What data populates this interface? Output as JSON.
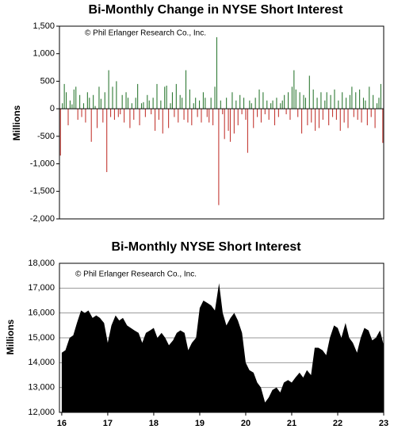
{
  "chart_data": [
    {
      "type": "bar",
      "title": "Bi-Monthly Change in NYSE Short Interest",
      "annotation": "© Phil Erlanger Research Co., Inc.",
      "ylabel": "Millions",
      "ylim": [
        -2000,
        1500
      ],
      "yticks": [
        {
          "value": 1500,
          "label": "1,500"
        },
        {
          "value": 1000,
          "label": "1,000"
        },
        500,
        0,
        -500,
        {
          "value": -1000,
          "label": "-1,000"
        },
        {
          "value": -1500,
          "label": "-1,500"
        },
        {
          "value": -2000,
          "label": "-2,000"
        }
      ],
      "colors": {
        "positive": "#2f7a35",
        "negative": "#c43a34"
      },
      "values": [
        -850,
        100,
        450,
        300,
        -300,
        150,
        80,
        350,
        400,
        -200,
        250,
        -150,
        100,
        -250,
        300,
        200,
        -600,
        250,
        50,
        -350,
        400,
        180,
        -250,
        300,
        -1150,
        700,
        -150,
        400,
        -200,
        500,
        -150,
        -100,
        250,
        -250,
        300,
        200,
        -350,
        100,
        -200,
        200,
        450,
        -300,
        100,
        120,
        -150,
        250,
        150,
        -100,
        200,
        -400,
        450,
        -200,
        150,
        -450,
        400,
        420,
        -350,
        100,
        300,
        -150,
        450,
        -250,
        250,
        200,
        -200,
        700,
        -250,
        350,
        -300,
        100,
        200,
        -150,
        150,
        -250,
        300,
        200,
        -150,
        -250,
        200,
        -300,
        400,
        1300,
        -1750,
        150,
        -100,
        -550,
        200,
        -400,
        -600,
        300,
        -450,
        150,
        -300,
        250,
        -100,
        200,
        -200,
        -800,
        150,
        100,
        -350,
        200,
        -150,
        350,
        -250,
        300,
        -100,
        150,
        -200,
        100,
        150,
        -300,
        200,
        -150,
        100,
        150,
        250,
        -100,
        300,
        -200,
        400,
        700,
        350,
        -150,
        300,
        -450,
        250,
        200,
        -300,
        600,
        -250,
        350,
        -400,
        200,
        -350,
        300,
        -200,
        150,
        300,
        -300,
        250,
        -150,
        350,
        -200,
        150,
        -400,
        300,
        -250,
        200,
        -350,
        250,
        400,
        -150,
        300,
        -200,
        350,
        -250,
        200,
        150,
        -300,
        400,
        -150,
        250,
        -350,
        100,
        200,
        450,
        -620
      ]
    },
    {
      "type": "area",
      "title": "Bi-Monthly NYSE Short Interest",
      "annotation": "© Phil Erlanger Research Co., Inc.",
      "ylabel": "Millions",
      "color": "#000000",
      "ylim": [
        12000,
        18000
      ],
      "yticks": [
        {
          "value": 18000,
          "label": "18,000"
        },
        {
          "value": 17000,
          "label": "17,000"
        },
        {
          "value": 16000,
          "label": "16,000"
        },
        {
          "value": 15000,
          "label": "15,000"
        },
        {
          "value": 14000,
          "label": "14,000"
        },
        {
          "value": 13000,
          "label": "13,000"
        },
        {
          "value": 12000,
          "label": "12,000"
        }
      ],
      "xlim": [
        2015.95,
        2023
      ],
      "xticks": [
        {
          "value": 2016,
          "label": "16"
        },
        {
          "value": 2017,
          "label": "17"
        },
        {
          "value": 2018,
          "label": "18"
        },
        {
          "value": 2019,
          "label": "19"
        },
        {
          "value": 2020,
          "label": "20"
        },
        {
          "value": 2021,
          "label": "21"
        },
        {
          "value": 2022,
          "label": "22"
        },
        {
          "value": 2023,
          "label": "23"
        }
      ],
      "grid": true,
      "x": [
        2016,
        2016.08,
        2016.17,
        2016.25,
        2016.33,
        2016.42,
        2016.5,
        2016.58,
        2016.67,
        2016.75,
        2016.83,
        2016.92,
        2017,
        2017.08,
        2017.17,
        2017.25,
        2017.33,
        2017.42,
        2017.5,
        2017.58,
        2017.67,
        2017.75,
        2017.83,
        2017.92,
        2018,
        2018.08,
        2018.17,
        2018.25,
        2018.33,
        2018.42,
        2018.5,
        2018.58,
        2018.67,
        2018.75,
        2018.83,
        2018.92,
        2019,
        2019.08,
        2019.17,
        2019.25,
        2019.33,
        2019.42,
        2019.5,
        2019.58,
        2019.67,
        2019.75,
        2019.83,
        2019.92,
        2020,
        2020.08,
        2020.17,
        2020.25,
        2020.33,
        2020.42,
        2020.5,
        2020.58,
        2020.67,
        2020.75,
        2020.83,
        2020.92,
        2021,
        2021.08,
        2021.17,
        2021.25,
        2021.33,
        2021.42,
        2021.5,
        2021.58,
        2021.67,
        2021.75,
        2021.83,
        2021.92,
        2022,
        2022.08,
        2022.17,
        2022.25,
        2022.33,
        2022.42,
        2022.5,
        2022.58,
        2022.67,
        2022.75,
        2022.83,
        2022.92,
        2023
      ],
      "values": [
        14400,
        14500,
        15000,
        15100,
        15600,
        16100,
        16000,
        16100,
        15800,
        15900,
        15800,
        15600,
        14800,
        15500,
        15900,
        15700,
        15800,
        15500,
        15400,
        15300,
        15200,
        14800,
        15200,
        15300,
        15400,
        15000,
        15200,
        15000,
        14700,
        14900,
        15200,
        15300,
        15200,
        14500,
        14800,
        15000,
        16200,
        16500,
        16400,
        16300,
        16100,
        17200,
        16000,
        15500,
        15800,
        16000,
        15700,
        15200,
        14000,
        13700,
        13600,
        13200,
        13000,
        12400,
        12600,
        12900,
        13000,
        12800,
        13200,
        13300,
        13200,
        13400,
        13600,
        13400,
        13700,
        13500,
        14600,
        14600,
        14500,
        14300,
        15000,
        15500,
        15400,
        15000,
        15600,
        15000,
        14800,
        14400,
        15000,
        15400,
        15300,
        14900,
        15000,
        15300,
        14700
      ]
    }
  ]
}
